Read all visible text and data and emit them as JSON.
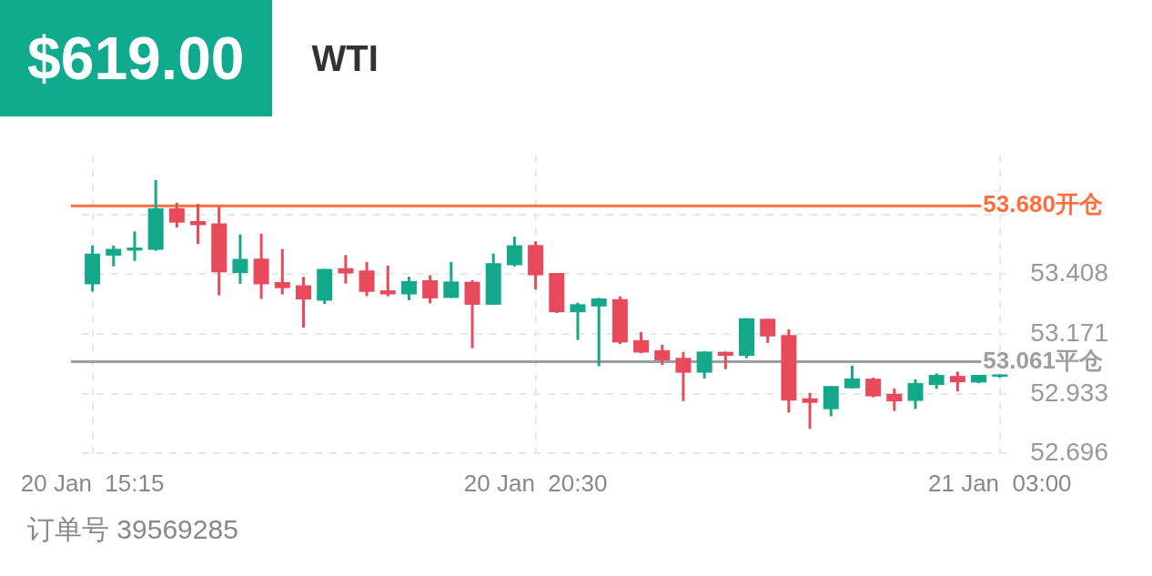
{
  "chart_data": {
    "type": "candlestick",
    "title": "WTI",
    "subtitle": "$619.00",
    "categories": [
      "20 Jan  15:15",
      null,
      null,
      null,
      null,
      null,
      null,
      null,
      null,
      null,
      null,
      null,
      null,
      null,
      null,
      null,
      null,
      null,
      null,
      null,
      null,
      "20 Jan  20:30",
      null,
      null,
      null,
      null,
      null,
      null,
      null,
      null,
      null,
      null,
      null,
      null,
      null,
      null,
      null,
      null,
      null,
      null,
      null,
      null,
      null,
      "21 Jan  03:00"
    ],
    "ohlc": [
      [
        53.368,
        53.522,
        53.339,
        53.49
      ],
      [
        53.482,
        53.522,
        53.439,
        53.509
      ],
      [
        53.502,
        53.578,
        53.461,
        53.514
      ],
      [
        53.505,
        53.782,
        53.501,
        53.67
      ],
      [
        53.67,
        53.692,
        53.594,
        53.613
      ],
      [
        53.619,
        53.687,
        53.528,
        53.603
      ],
      [
        53.61,
        53.676,
        53.324,
        53.416
      ],
      [
        53.413,
        53.566,
        53.37,
        53.469
      ],
      [
        53.47,
        53.569,
        53.31,
        53.368
      ],
      [
        53.377,
        53.508,
        53.328,
        53.353
      ],
      [
        53.364,
        53.398,
        53.196,
        53.308
      ],
      [
        53.303,
        53.429,
        53.29,
        53.429
      ],
      [
        53.432,
        53.484,
        53.371,
        53.411
      ],
      [
        53.423,
        53.457,
        53.321,
        53.338
      ],
      [
        53.344,
        53.442,
        53.32,
        53.328
      ],
      [
        53.328,
        53.398,
        53.305,
        53.381
      ],
      [
        53.384,
        53.404,
        53.292,
        53.312
      ],
      [
        53.314,
        53.457,
        53.314,
        53.379
      ],
      [
        53.378,
        53.384,
        53.114,
        53.287
      ],
      [
        53.287,
        53.49,
        53.287,
        53.452
      ],
      [
        53.444,
        53.557,
        53.439,
        53.523
      ],
      [
        53.524,
        53.539,
        53.348,
        53.404
      ],
      [
        53.413,
        53.413,
        53.254,
        53.257
      ],
      [
        53.257,
        53.295,
        53.147,
        53.289
      ],
      [
        53.28,
        53.314,
        53.043,
        53.312
      ],
      [
        53.309,
        53.32,
        53.131,
        53.137
      ],
      [
        53.146,
        53.178,
        53.094,
        53.097
      ],
      [
        53.106,
        53.128,
        53.048,
        53.066
      ],
      [
        53.076,
        53.099,
        52.904,
        53.017
      ],
      [
        53.017,
        53.101,
        52.994,
        53.101
      ],
      [
        53.1,
        53.1,
        53.031,
        53.084
      ],
      [
        53.084,
        53.233,
        53.075,
        53.233
      ],
      [
        53.231,
        53.231,
        53.135,
        53.161
      ],
      [
        53.166,
        53.189,
        52.858,
        52.906
      ],
      [
        52.915,
        52.937,
        52.794,
        52.897
      ],
      [
        52.872,
        52.964,
        52.844,
        52.964
      ],
      [
        52.955,
        53.045,
        52.955,
        52.994
      ],
      [
        52.993,
        52.997,
        52.919,
        52.923
      ],
      [
        52.933,
        52.954,
        52.865,
        52.903
      ],
      [
        52.905,
        52.991,
        52.873,
        52.976
      ],
      [
        52.968,
        53.014,
        52.953,
        53.008
      ],
      [
        53.004,
        53.021,
        52.943,
        52.979
      ],
      [
        52.978,
        53.008,
        52.975,
        53.008
      ],
      [
        53.001,
        53.01,
        52.997,
        53.01
      ]
    ],
    "colors": [
      "#14a88b",
      "#14a88b",
      "#14a88b",
      "#14a88b",
      "#e84a5b",
      "#e84a5b",
      "#e84a5b",
      "#14a88b",
      "#e84a5b",
      "#e84a5b",
      "#e84a5b",
      "#14a88b",
      "#e84a5b",
      "#e84a5b",
      "#e84a5b",
      "#14a88b",
      "#e84a5b",
      "#14a88b",
      "#e84a5b",
      "#14a88b",
      "#14a88b",
      "#e84a5b",
      "#e84a5b",
      "#14a88b",
      "#14a88b",
      "#e84a5b",
      "#e84a5b",
      "#e84a5b",
      "#e84a5b",
      "#14a88b",
      "#e84a5b",
      "#14a88b",
      "#e84a5b",
      "#e84a5b",
      "#e84a5b",
      "#14a88b",
      "#14a88b",
      "#e84a5b",
      "#e84a5b",
      "#14a88b",
      "#14a88b",
      "#e84a5b",
      "#14a88b",
      "#14a88b"
    ],
    "ylim": [
      52.68,
      53.88
    ],
    "yticks": [
      52.696,
      52.933,
      53.171,
      53.408,
      {
        "value": 53.646,
        "label": null
      }
    ],
    "grid": true,
    "ref_lines": [
      {
        "axis": "y",
        "value": 53.68,
        "label": "53.680开仓",
        "color": "#ff6d3a"
      },
      {
        "axis": "y",
        "value": 53.061,
        "label": "53.061平仓",
        "color": "#9e9e9e"
      }
    ],
    "annotations": [
      "订单号 39569285"
    ]
  }
}
